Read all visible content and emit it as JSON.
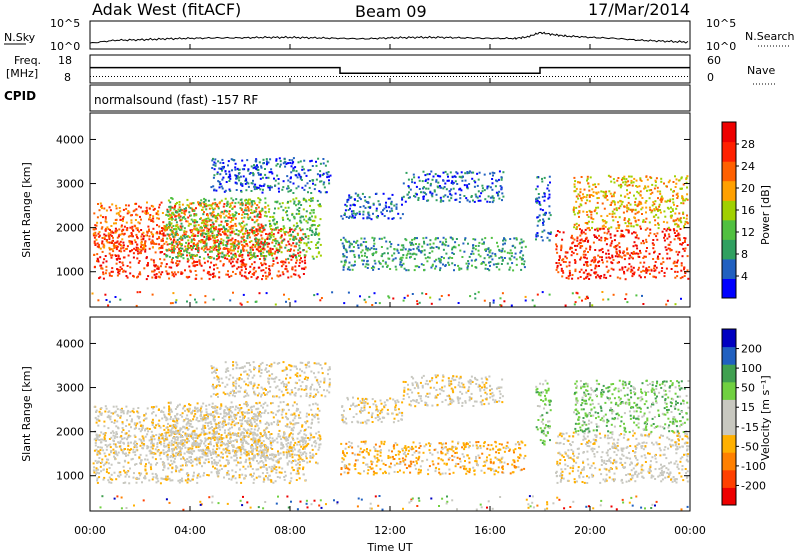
{
  "header": {
    "radar": "Adak West (fitACF)",
    "beam": "Beam 09",
    "date": "17/Mar/2014"
  },
  "colors": {
    "power": [
      "#0000ff",
      "#2060c0",
      "#30a060",
      "#50c040",
      "#a0d000",
      "#ffa000",
      "#ff6000",
      "#ff2000",
      "#ee0000"
    ],
    "velocity": [
      "#ee0000",
      "#ff4000",
      "#ff8000",
      "#ffb000",
      "#c8c8c0",
      "#c8c8c0",
      "#70d040",
      "#40a050",
      "#2060c0",
      "#0000c0"
    ]
  },
  "chart_data": [
    {
      "id": "nsky-nsearch",
      "type": "line",
      "left_label": [
        "N.Sky"
      ],
      "right_label": "N.Search",
      "left_ticks": [
        "10^5",
        "10^0"
      ],
      "right_ticks": [
        "10^5",
        "10^0"
      ],
      "x": [
        0,
        1,
        2,
        3,
        4,
        5,
        6,
        7,
        8,
        9,
        10,
        11,
        12,
        13,
        14,
        15,
        16,
        17,
        17.5,
        18,
        18.5,
        19,
        20,
        21,
        22,
        23,
        24
      ],
      "log_noise": [
        0.8,
        1.4,
        1.5,
        1.7,
        1.8,
        1.9,
        1.9,
        2.0,
        2.0,
        1.9,
        1.8,
        1.7,
        1.9,
        2.0,
        2.0,
        1.9,
        1.8,
        1.8,
        2.1,
        3.0,
        2.6,
        2.3,
        2.0,
        1.8,
        1.4,
        1.2,
        1.0
      ]
    },
    {
      "id": "freq-nave",
      "type": "line",
      "left_label": [
        "Freq.",
        "[MHz]"
      ],
      "right_label": "Nave",
      "left_ticks": [
        "18",
        "8"
      ],
      "right_ticks": [
        "60",
        "0"
      ],
      "left_ylim": [
        8,
        18
      ],
      "right_ylim": [
        0,
        60
      ],
      "freq_steps": [
        {
          "from": 0,
          "to": 10,
          "value": 13.5
        },
        {
          "from": 10,
          "to": 18,
          "value": 11.5
        },
        {
          "from": 18,
          "to": 24,
          "value": 13.5
        }
      ],
      "nave": 14
    },
    {
      "id": "cpid",
      "type": "table",
      "label": "CPID",
      "text": "normalsound (fast) -157 RF"
    },
    {
      "id": "power",
      "type": "heatmap",
      "ylabel": "Slant Range [km]",
      "yticks": [
        1000,
        2000,
        3000,
        4000
      ],
      "ylim": [
        200,
        4600
      ],
      "xlim": [
        0,
        24
      ],
      "colorbar_label": "Power [dB]",
      "colorbar_ticks": [
        4,
        8,
        12,
        16,
        20,
        24,
        28
      ],
      "bands": [
        {
          "x0": 0.1,
          "x1": 8.6,
          "r0": 850,
          "r1": 2000,
          "level": 7
        },
        {
          "x0": 0.1,
          "x1": 7.0,
          "r0": 1500,
          "r1": 2600,
          "level": 6
        },
        {
          "x0": 3.0,
          "x1": 9.2,
          "r0": 1300,
          "r1": 2700,
          "level": 3
        },
        {
          "x0": 4.8,
          "x1": 9.6,
          "r0": 2800,
          "r1": 3600,
          "level": 1
        },
        {
          "x0": 10.0,
          "x1": 12.5,
          "r0": 2200,
          "r1": 2800,
          "level": 1
        },
        {
          "x0": 12.5,
          "x1": 16.5,
          "r0": 2600,
          "r1": 3300,
          "level": 1
        },
        {
          "x0": 10.0,
          "x1": 17.4,
          "r0": 1050,
          "r1": 1800,
          "level": 2
        },
        {
          "x0": 17.8,
          "x1": 18.4,
          "r0": 1700,
          "r1": 3200,
          "level": 1
        },
        {
          "x0": 18.6,
          "x1": 23.9,
          "r0": 850,
          "r1": 2000,
          "level": 7
        },
        {
          "x0": 19.3,
          "x1": 23.9,
          "r0": 2000,
          "r1": 3200,
          "level": 5
        }
      ]
    },
    {
      "id": "velocity",
      "type": "heatmap",
      "ylabel": "Slant Range [km]",
      "yticks": [
        1000,
        2000,
        3000,
        4000
      ],
      "ylim": [
        200,
        4600
      ],
      "xlim": [
        0,
        24
      ],
      "xticks": [
        "00:00",
        "04:00",
        "08:00",
        "12:00",
        "16:00",
        "20:00",
        "00:00"
      ],
      "xlabel": "Time UT",
      "colorbar_label": "Velocity [m s⁻¹]",
      "colorbar_ticks": [
        -200,
        -100,
        -50,
        -15,
        15,
        50,
        100,
        200
      ],
      "bands": [
        {
          "x0": 0.1,
          "x1": 8.6,
          "r0": 850,
          "r1": 2000,
          "level": 4
        },
        {
          "x0": 0.1,
          "x1": 7.0,
          "r0": 1500,
          "r1": 2600,
          "level": 4
        },
        {
          "x0": 3.0,
          "x1": 9.2,
          "r0": 1300,
          "r1": 2700,
          "level": 4
        },
        {
          "x0": 4.8,
          "x1": 9.6,
          "r0": 2800,
          "r1": 3600,
          "level": 4
        },
        {
          "x0": 10.0,
          "x1": 12.5,
          "r0": 2200,
          "r1": 2800,
          "level": 4
        },
        {
          "x0": 12.5,
          "x1": 16.5,
          "r0": 2600,
          "r1": 3300,
          "level": 4
        },
        {
          "x0": 10.0,
          "x1": 17.4,
          "r0": 1050,
          "r1": 1800,
          "level": 3
        },
        {
          "x0": 17.8,
          "x1": 18.4,
          "r0": 1700,
          "r1": 3200,
          "level": 6
        },
        {
          "x0": 18.6,
          "x1": 23.9,
          "r0": 850,
          "r1": 2000,
          "level": 4
        },
        {
          "x0": 19.3,
          "x1": 23.9,
          "r0": 2000,
          "r1": 3200,
          "level": 6
        }
      ]
    }
  ]
}
